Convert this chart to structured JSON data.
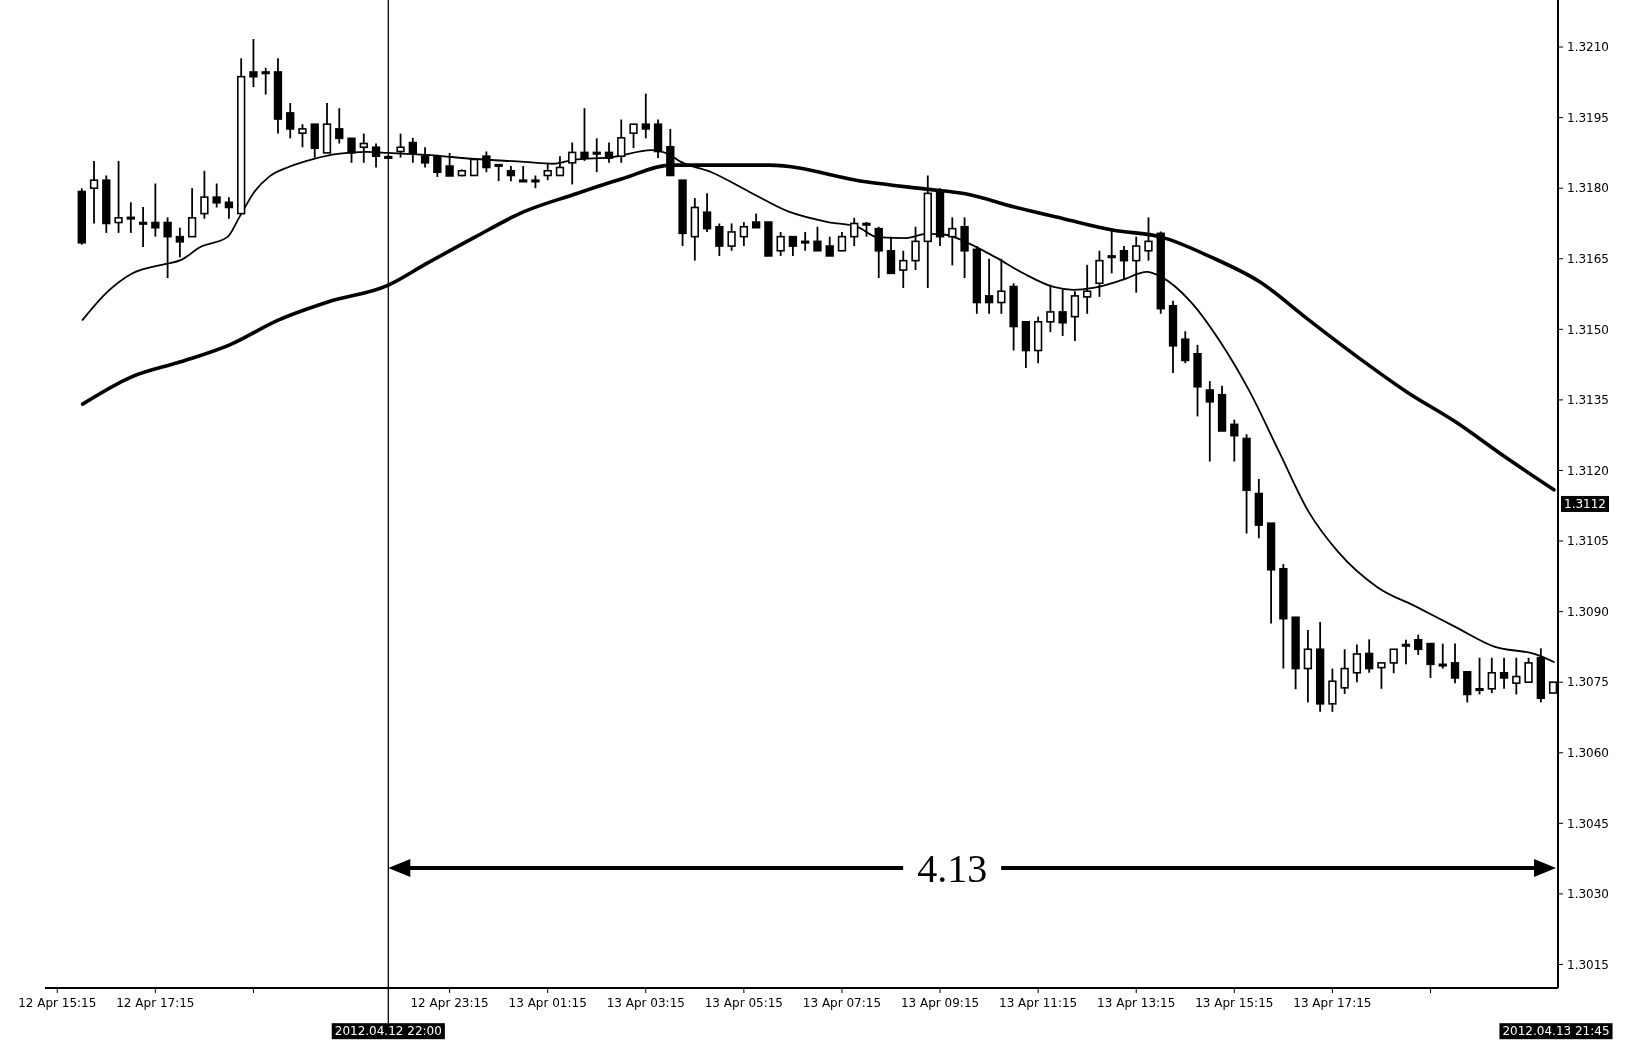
{
  "chart_data": {
    "type": "candlestick",
    "xlim": [
      "2012-04-12T15:00",
      "2012-04-13T21:51"
    ],
    "ylim": [
      1.301,
      1.322
    ],
    "xticks": [
      {
        "value": "2012-04-12T15:15",
        "label": "12 Apr 15:15"
      },
      {
        "value": "2012-04-12T17:15",
        "label": "12 Apr 17:15"
      },
      {
        "value": "2012-04-12T19:15",
        "label": null
      },
      {
        "value": "2012-04-12T23:15",
        "label": "12 Apr 23:15"
      },
      {
        "value": "2012-04-13T01:15",
        "label": "13 Apr 01:15"
      },
      {
        "value": "2012-04-13T03:15",
        "label": "13 Apr 03:15"
      },
      {
        "value": "2012-04-13T05:15",
        "label": "13 Apr 05:15"
      },
      {
        "value": "2012-04-13T07:15",
        "label": "13 Apr 07:15"
      },
      {
        "value": "2012-04-13T09:15",
        "label": "13 Apr 09:15"
      },
      {
        "value": "2012-04-13T11:15",
        "label": "13 Apr 11:15"
      },
      {
        "value": "2012-04-13T13:15",
        "label": "13 Apr 13:15"
      },
      {
        "value": "2012-04-13T15:15",
        "label": "13 Apr 15:15"
      },
      {
        "value": "2012-04-13T17:15",
        "label": "13 Apr 17:15"
      },
      {
        "value": "2012-04-13T19:15",
        "label": null
      }
    ],
    "yticks": [
      {
        "value": 1.3015,
        "label": "1.3015"
      },
      {
        "value": 1.303,
        "label": "1.3030"
      },
      {
        "value": 1.3045,
        "label": "1.3045"
      },
      {
        "value": 1.306,
        "label": "1.3060"
      },
      {
        "value": 1.3075,
        "label": "1.3075"
      },
      {
        "value": 1.309,
        "label": "1.3090"
      },
      {
        "value": 1.3105,
        "label": "1.3105"
      },
      {
        "value": 1.312,
        "label": "1.3120"
      },
      {
        "value": 1.3135,
        "label": "1.3135"
      },
      {
        "value": 1.315,
        "label": "1.3150"
      },
      {
        "value": 1.3165,
        "label": "1.3165"
      },
      {
        "value": 1.318,
        "label": "1.3180"
      },
      {
        "value": 1.3195,
        "label": "1.3195"
      },
      {
        "value": 1.321,
        "label": "1.3210"
      }
    ],
    "ref_lines": [
      {
        "axis": "x",
        "value": "2012-04-12T22:00",
        "label": "2012.04.12 22:00",
        "color": "#000000"
      }
    ],
    "annotations": [
      "4.13",
      "2012.04.13 21:45",
      "1.3112"
    ],
    "series": [
      {
        "type": "candlestick",
        "color": "#000000",
        "x": [
          "2012-04-12T15:45",
          "2012-04-12T16:00",
          "2012-04-12T16:15",
          "2012-04-12T16:30",
          "2012-04-12T16:45",
          "2012-04-12T17:00",
          "2012-04-12T17:15",
          "2012-04-12T17:30",
          "2012-04-12T17:45",
          "2012-04-12T18:00",
          "2012-04-12T18:15",
          "2012-04-12T18:30",
          "2012-04-12T18:45",
          "2012-04-12T19:00",
          "2012-04-12T19:15",
          "2012-04-12T19:30",
          "2012-04-12T19:45",
          "2012-04-12T20:00",
          "2012-04-12T20:15",
          "2012-04-12T20:30",
          "2012-04-12T20:45",
          "2012-04-12T21:00",
          "2012-04-12T21:15",
          "2012-04-12T21:30",
          "2012-04-12T21:45",
          "2012-04-12T22:00",
          "2012-04-12T22:15",
          "2012-04-12T22:30",
          "2012-04-12T22:45",
          "2012-04-12T23:00",
          "2012-04-12T23:15",
          "2012-04-12T23:30",
          "2012-04-12T23:45",
          "2012-04-13T00:00",
          "2012-04-13T00:15",
          "2012-04-13T00:30",
          "2012-04-13T00:45",
          "2012-04-13T01:00",
          "2012-04-13T01:15",
          "2012-04-13T01:30",
          "2012-04-13T01:45",
          "2012-04-13T02:00",
          "2012-04-13T02:15",
          "2012-04-13T02:30",
          "2012-04-13T02:45",
          "2012-04-13T03:00",
          "2012-04-13T03:15",
          "2012-04-13T03:30",
          "2012-04-13T03:45",
          "2012-04-13T04:00",
          "2012-04-13T04:15",
          "2012-04-13T04:30",
          "2012-04-13T04:45",
          "2012-04-13T05:00",
          "2012-04-13T05:15",
          "2012-04-13T05:30",
          "2012-04-13T05:45",
          "2012-04-13T06:00",
          "2012-04-13T06:15",
          "2012-04-13T06:30",
          "2012-04-13T06:45",
          "2012-04-13T07:00",
          "2012-04-13T07:15",
          "2012-04-13T07:30",
          "2012-04-13T07:45",
          "2012-04-13T08:00",
          "2012-04-13T08:15",
          "2012-04-13T08:30",
          "2012-04-13T08:45",
          "2012-04-13T09:00",
          "2012-04-13T09:15",
          "2012-04-13T09:30",
          "2012-04-13T09:45",
          "2012-04-13T10:00",
          "2012-04-13T10:15",
          "2012-04-13T10:30",
          "2012-04-13T10:45",
          "2012-04-13T11:00",
          "2012-04-13T11:15",
          "2012-04-13T11:30",
          "2012-04-13T11:45",
          "2012-04-13T12:00",
          "2012-04-13T12:15",
          "2012-04-13T12:30",
          "2012-04-13T12:45",
          "2012-04-13T13:00",
          "2012-04-13T13:15",
          "2012-04-13T13:30",
          "2012-04-13T13:45",
          "2012-04-13T14:00",
          "2012-04-13T14:15",
          "2012-04-13T14:30",
          "2012-04-13T14:45",
          "2012-04-13T15:00",
          "2012-04-13T15:15",
          "2012-04-13T15:30",
          "2012-04-13T15:45",
          "2012-04-13T16:00",
          "2012-04-13T16:15",
          "2012-04-13T16:30",
          "2012-04-13T16:45",
          "2012-04-13T17:00",
          "2012-04-13T17:15",
          "2012-04-13T17:30",
          "2012-04-13T17:45",
          "2012-04-13T18:00",
          "2012-04-13T18:15",
          "2012-04-13T18:30",
          "2012-04-13T18:45",
          "2012-04-13T19:00",
          "2012-04-13T19:15",
          "2012-04-13T19:30",
          "2012-04-13T19:45",
          "2012-04-13T20:00",
          "2012-04-13T20:15",
          "2012-04-13T20:30",
          "2012-04-13T20:45",
          "2012-04-13T21:00",
          "2012-04-13T21:15",
          "2012-04-13T21:30",
          "2012-04-13T21:45"
        ],
        "ohlc": [
          [
            1.31793,
            1.318,
            1.3168,
            1.31684
          ],
          [
            1.318,
            1.31858,
            1.31725,
            1.31817
          ],
          [
            1.31817,
            1.31827,
            1.31705,
            1.31725
          ],
          [
            1.31727,
            1.31858,
            1.31705,
            1.31737
          ],
          [
            1.31738,
            1.3177,
            1.31705,
            1.31738
          ],
          [
            1.31727,
            1.3176,
            1.31675,
            1.31727
          ],
          [
            1.31727,
            1.3181,
            1.31697,
            1.31716
          ],
          [
            1.31727,
            1.31738,
            1.31609,
            1.31697
          ],
          [
            1.31697,
            1.31716,
            1.31653,
            1.31686
          ],
          [
            1.31697,
            1.318,
            1.31697,
            1.31737
          ],
          [
            1.31746,
            1.31837,
            1.31735,
            1.31781
          ],
          [
            1.31781,
            1.3181,
            1.31759,
            1.31769
          ],
          [
            1.3177,
            1.31781,
            1.31735,
            1.31759
          ],
          [
            1.31746,
            1.32076,
            1.31746,
            1.32037
          ],
          [
            1.32047,
            1.32117,
            1.32015,
            1.32037
          ],
          [
            1.32047,
            1.32056,
            1.31999,
            1.32047
          ],
          [
            1.32047,
            1.32076,
            1.31916,
            1.31947
          ],
          [
            1.3196,
            1.31981,
            1.31906,
            1.31926
          ],
          [
            1.31917,
            1.31936,
            1.31887,
            1.31926
          ],
          [
            1.31936,
            1.31936,
            1.31865,
            1.31885
          ],
          [
            1.31875,
            1.31981,
            1.31875,
            1.31936
          ],
          [
            1.31926,
            1.3197,
            1.31895,
            1.31906
          ],
          [
            1.31906,
            1.31906,
            1.31854,
            1.31875
          ],
          [
            1.31887,
            1.31916,
            1.31854,
            1.31895
          ],
          [
            1.31887,
            1.31895,
            1.31844,
            1.31868
          ],
          [
            1.31867,
            1.3187,
            1.31865,
            1.31867
          ],
          [
            1.31878,
            1.31916,
            1.31865,
            1.31887
          ],
          [
            1.31897,
            1.31907,
            1.31854,
            1.31875
          ],
          [
            1.31868,
            1.31887,
            1.31844,
            1.31854
          ],
          [
            1.31868,
            1.31871,
            1.31824,
            1.31834
          ],
          [
            1.31847,
            1.31875,
            1.31826,
            1.31826
          ],
          [
            1.31827,
            1.3184,
            1.31825,
            1.31837
          ],
          [
            1.31827,
            1.31861,
            1.31827,
            1.31861
          ],
          [
            1.31868,
            1.31878,
            1.31834,
            1.31844
          ],
          [
            1.3185,
            1.31851,
            1.31815,
            1.31847
          ],
          [
            1.31837,
            1.31847,
            1.31815,
            1.31827
          ],
          [
            1.31817,
            1.31847,
            1.31815,
            1.31817
          ],
          [
            1.31817,
            1.31827,
            1.318,
            1.31817
          ],
          [
            1.31827,
            1.31854,
            1.31817,
            1.31837
          ],
          [
            1.31827,
            1.31868,
            1.31827,
            1.31844
          ],
          [
            1.31854,
            1.31897,
            1.31808,
            1.31876
          ],
          [
            1.31876,
            1.3197,
            1.31858,
            1.31864
          ],
          [
            1.31876,
            1.31906,
            1.31834,
            1.31876
          ],
          [
            1.31876,
            1.31897,
            1.31854,
            1.31864
          ],
          [
            1.31868,
            1.31946,
            1.31854,
            1.31907
          ],
          [
            1.31917,
            1.31936,
            1.31885,
            1.31936
          ],
          [
            1.31936,
            1.32001,
            1.31906,
            1.31926
          ],
          [
            1.31936,
            1.31946,
            1.31864,
            1.31878
          ],
          [
            1.31888,
            1.31926,
            1.31827,
            1.31827
          ],
          [
            1.31817,
            1.31817,
            1.31677,
            1.31704
          ],
          [
            1.31697,
            1.31779,
            1.31646,
            1.31759
          ],
          [
            1.31749,
            1.31789,
            1.31707,
            1.31714
          ],
          [
            1.31718,
            1.31725,
            1.31656,
            1.31677
          ],
          [
            1.31677,
            1.31725,
            1.31667,
            1.31707
          ],
          [
            1.31697,
            1.31728,
            1.31677,
            1.31718
          ],
          [
            1.31728,
            1.31746,
            1.31716,
            1.31716
          ],
          [
            1.31728,
            1.31728,
            1.31656,
            1.31656
          ],
          [
            1.31667,
            1.31707,
            1.31656,
            1.31697
          ],
          [
            1.31697,
            1.31697,
            1.31656,
            1.31677
          ],
          [
            1.31687,
            1.31707,
            1.31667,
            1.31687
          ],
          [
            1.31687,
            1.31718,
            1.31667,
            1.31667
          ],
          [
            1.31677,
            1.31697,
            1.31656,
            1.31656
          ],
          [
            1.31667,
            1.31707,
            1.31667,
            1.31697
          ],
          [
            1.31697,
            1.31737,
            1.31677,
            1.31725
          ],
          [
            1.31725,
            1.31728,
            1.31697,
            1.31725
          ],
          [
            1.31714,
            1.31718,
            1.31609,
            1.31667
          ],
          [
            1.31667,
            1.31697,
            1.31619,
            1.31619
          ],
          [
            1.31626,
            1.31667,
            1.31588,
            1.31646
          ],
          [
            1.31646,
            1.31718,
            1.31626,
            1.31687
          ],
          [
            1.31687,
            1.31827,
            1.31588,
            1.31789
          ],
          [
            1.31793,
            1.318,
            1.31677,
            1.31697
          ],
          [
            1.31697,
            1.31738,
            1.31636,
            1.31714
          ],
          [
            1.31718,
            1.31738,
            1.31609,
            1.31667
          ],
          [
            1.3167,
            1.31677,
            1.31533,
            1.31557
          ],
          [
            1.31571,
            1.3165,
            1.31533,
            1.31557
          ],
          [
            1.31557,
            1.3165,
            1.31533,
            1.31581
          ],
          [
            1.31591,
            1.31598,
            1.31455,
            1.31506
          ],
          [
            1.31516,
            1.31516,
            1.31418,
            1.31455
          ],
          [
            1.31455,
            1.31527,
            1.31428,
            1.31516
          ],
          [
            1.31516,
            1.31595,
            1.31494,
            1.31537
          ],
          [
            1.31537,
            1.31585,
            1.31486,
            1.31514
          ],
          [
            1.31527,
            1.31581,
            1.31475,
            1.31571
          ],
          [
            1.31569,
            1.31637,
            1.31533,
            1.31581
          ],
          [
            1.31598,
            1.31667,
            1.31569,
            1.31646
          ],
          [
            1.31656,
            1.31714,
            1.31619,
            1.31656
          ],
          [
            1.31667,
            1.31677,
            1.31605,
            1.31646
          ],
          [
            1.31646,
            1.31697,
            1.31578,
            1.31677
          ],
          [
            1.31667,
            1.31738,
            1.31646,
            1.31687
          ],
          [
            1.31704,
            1.31708,
            1.31533,
            1.31544
          ],
          [
            1.3155,
            1.31561,
            1.31407,
            1.31465
          ],
          [
            1.31479,
            1.31496,
            1.31428,
            1.31434
          ],
          [
            1.31448,
            1.31467,
            1.31315,
            1.31378
          ],
          [
            1.31371,
            1.3139,
            1.31219,
            1.31346
          ],
          [
            1.31361,
            1.3138,
            1.31284,
            1.31284
          ],
          [
            1.31298,
            1.31308,
            1.31219,
            1.31274
          ],
          [
            1.31268,
            1.31277,
            1.31066,
            1.31158
          ],
          [
            1.31151,
            1.31182,
            1.31056,
            1.31084
          ],
          [
            1.31088,
            1.31088,
            1.30875,
            1.30989
          ],
          [
            1.30991,
            1.31001,
            1.30779,
            1.30885
          ],
          [
            1.30888,
            1.30888,
            1.30735,
            1.30779
          ],
          [
            1.30779,
            1.30861,
            1.30707,
            1.3082
          ],
          [
            1.3082,
            1.30878,
            1.30687,
            1.30704
          ],
          [
            1.30704,
            1.30779,
            1.30687,
            1.30752
          ],
          [
            1.30738,
            1.3082,
            1.30725,
            1.30779
          ],
          [
            1.3077,
            1.3083,
            1.3075,
            1.3081
          ],
          [
            1.30811,
            1.30841,
            1.3077,
            1.30779
          ],
          [
            1.30781,
            1.30791,
            1.30736,
            1.30791
          ],
          [
            1.30791,
            1.3082,
            1.30769,
            1.3082
          ],
          [
            1.3083,
            1.3084,
            1.30788,
            1.3083
          ],
          [
            1.3084,
            1.30851,
            1.30808,
            1.3082
          ],
          [
            1.30832,
            1.30832,
            1.30759,
            1.30788
          ],
          [
            1.30788,
            1.30832,
            1.30779,
            1.30788
          ],
          [
            1.30791,
            1.30832,
            1.30748,
            1.30759
          ],
          [
            1.30772,
            1.30772,
            1.30707,
            1.30724
          ],
          [
            1.30736,
            1.30802,
            1.30724,
            1.30736
          ],
          [
            1.30736,
            1.30802,
            1.30727,
            1.3077
          ],
          [
            1.3077,
            1.30802,
            1.30736,
            1.30759
          ],
          [
            1.30748,
            1.30802,
            1.30724,
            1.30762
          ],
          [
            1.3075,
            1.30802,
            1.3075,
            1.30791
          ],
          [
            1.30802,
            1.30822,
            1.30707,
            1.30716
          ],
          [
            1.30727,
            1.3075,
            1.30727,
            1.3075
          ]
        ]
      },
      {
        "type": "line",
        "color": "#000000",
        "x": [
          "2012-04-12T15:46",
          "2012-04-12T16:16",
          "2012-04-12T16:46",
          "2012-04-12T17:28",
          "2012-04-12T17:46",
          "2012-04-12T18:10",
          "2012-04-12T18:43",
          "2012-04-12T18:58",
          "2012-04-12T19:16",
          "2012-04-12T19:34",
          "2012-04-12T19:58",
          "2012-04-12T20:28",
          "2012-04-12T20:58",
          "2012-04-12T21:34",
          "2012-04-12T22:00",
          "2012-04-12T22:46",
          "2012-04-12T23:46",
          "2012-04-13T00:46",
          "2012-04-13T01:22",
          "2012-04-13T01:46",
          "2012-04-13T02:34",
          "2012-04-13T03:22",
          "2012-04-13T03:42",
          "2012-04-13T03:58",
          "2012-04-13T04:34",
          "2012-04-13T05:22",
          "2012-04-13T06:10",
          "2012-04-13T06:58",
          "2012-04-13T07:34",
          "2012-04-13T07:58",
          "2012-04-13T08:34",
          "2012-04-13T08:58",
          "2012-04-13T09:22",
          "2012-04-13T09:46",
          "2012-04-13T10:22",
          "2012-04-13T10:58",
          "2012-04-13T11:34",
          "2012-04-13T11:58",
          "2012-04-13T12:22",
          "2012-04-13T12:58",
          "2012-04-13T13:28",
          "2012-04-13T13:46",
          "2012-04-13T14:22",
          "2012-04-13T14:58",
          "2012-04-13T15:34",
          "2012-04-13T16:10",
          "2012-04-13T16:46",
          "2012-04-13T17:22",
          "2012-04-13T18:10",
          "2012-04-13T18:58",
          "2012-04-13T19:46",
          "2012-04-13T20:34",
          "2012-04-13T21:22",
          "2012-04-13T21:46"
        ],
        "values": [
          1.3152,
          1.31579,
          1.31618,
          1.31639,
          1.31647,
          1.31675,
          1.31696,
          1.31739,
          1.31792,
          1.31824,
          1.31845,
          1.31862,
          1.31873,
          1.31877,
          1.31875,
          1.31871,
          1.31862,
          1.31856,
          1.31852,
          1.3186,
          1.31866,
          1.31881,
          1.31873,
          1.31856,
          1.31835,
          1.31792,
          1.3175,
          1.31728,
          1.31718,
          1.31696,
          1.31694,
          1.31703,
          1.31701,
          1.31686,
          1.31654,
          1.31618,
          1.3159,
          1.31584,
          1.31588,
          1.31605,
          1.31622,
          1.31611,
          1.31558,
          1.31473,
          1.31367,
          1.31239,
          1.31112,
          1.31027,
          1.30952,
          1.3091,
          1.30867,
          1.30825,
          1.3081,
          1.30793
        ]
      },
      {
        "type": "line",
        "color": "#000000",
        "x": [
          "2012-04-12T15:46",
          "2012-04-12T16:46",
          "2012-04-12T17:46",
          "2012-04-12T18:46",
          "2012-04-12T19:46",
          "2012-04-12T20:46",
          "2012-04-12T22:00",
          "2012-04-12T22:46",
          "2012-04-12T23:46",
          "2012-04-13T00:46",
          "2012-04-13T01:46",
          "2012-04-13T02:46",
          "2012-04-13T03:46",
          "2012-04-13T05:46",
          "2012-04-13T07:46",
          "2012-04-13T08:58",
          "2012-04-13T09:46",
          "2012-04-13T10:46",
          "2012-04-13T11:46",
          "2012-04-13T12:46",
          "2012-04-13T13:46",
          "2012-04-13T14:46",
          "2012-04-13T15:46",
          "2012-04-13T16:46",
          "2012-04-13T17:46",
          "2012-04-13T18:46",
          "2012-04-13T19:46",
          "2012-04-13T20:46",
          "2012-04-13T21:46"
        ],
        "values": [
          1.31341,
          1.31399,
          1.31431,
          1.31467,
          1.3152,
          1.31558,
          1.31594,
          1.31639,
          1.31696,
          1.3175,
          1.31786,
          1.3182,
          1.31849,
          1.31849,
          1.31813,
          1.31798,
          1.31788,
          1.3176,
          1.31735,
          1.31711,
          1.31696,
          1.31654,
          1.31601,
          1.3152,
          1.31441,
          1.31367,
          1.31303,
          1.31229,
          1.31159
        ]
      }
    ]
  }
}
